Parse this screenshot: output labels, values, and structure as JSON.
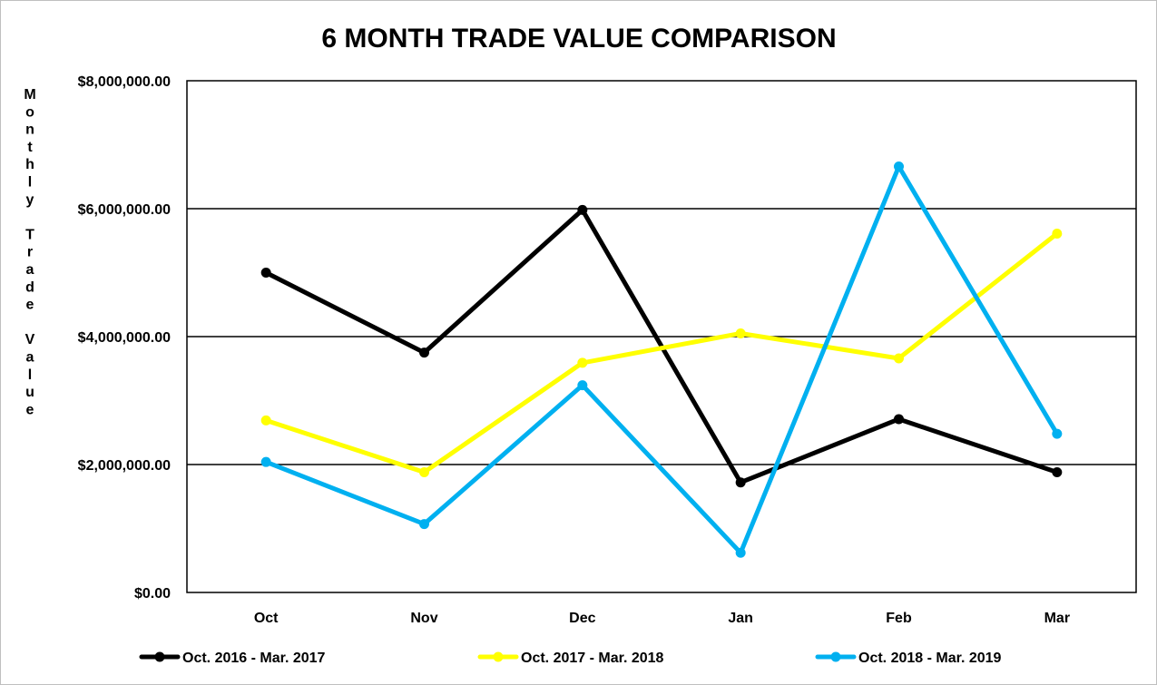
{
  "chart_data": {
    "type": "line",
    "title": "6 MONTH TRADE VALUE COMPARISON",
    "xlabel": "",
    "ylabel": "Monthly Trade Value",
    "categories": [
      "Oct",
      "Nov",
      "Dec",
      "Jan",
      "Feb",
      "Mar"
    ],
    "ylim": [
      0,
      8000000
    ],
    "yticks": [
      0,
      2000000,
      4000000,
      6000000,
      8000000
    ],
    "ytick_labels": [
      "$0.00",
      "$2,000,000.00",
      "$4,000,000.00",
      "$6,000,000.00",
      "$8,000,000.00"
    ],
    "grid": true,
    "legend_position": "bottom",
    "series": [
      {
        "name": "Oct. 2016 - Mar. 2017",
        "color": "#000000",
        "values": [
          5000000,
          3750000,
          5980000,
          1720000,
          2710000,
          1880000
        ]
      },
      {
        "name": "Oct. 2017 - Mar. 2018",
        "color": "#ffff00",
        "values": [
          2690000,
          1880000,
          3590000,
          4050000,
          3660000,
          5610000
        ]
      },
      {
        "name": "Oct. 2018 - Mar. 2019",
        "color": "#00b0f0",
        "values": [
          2040000,
          1070000,
          3240000,
          620000,
          6660000,
          2480000
        ]
      }
    ]
  }
}
